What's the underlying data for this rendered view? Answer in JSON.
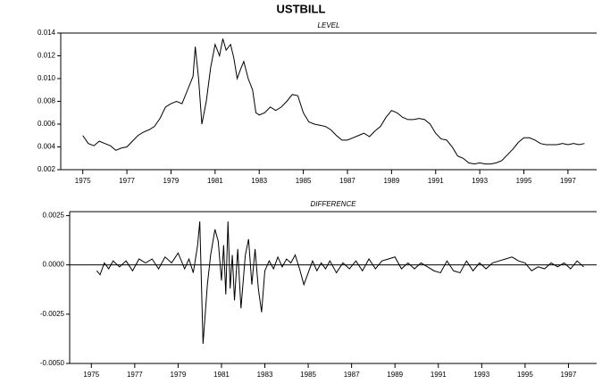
{
  "chart_data": [
    {
      "type": "line",
      "title": "USTBILL",
      "subtitle": "LEVEL",
      "color": "#000000",
      "x": [
        1975.0,
        1975.25,
        1975.5,
        1975.75,
        1976.0,
        1976.25,
        1976.5,
        1976.75,
        1977.0,
        1977.25,
        1977.5,
        1977.75,
        1978.0,
        1978.25,
        1978.5,
        1978.75,
        1979.0,
        1979.25,
        1979.5,
        1979.75,
        1980.0,
        1980.1,
        1980.25,
        1980.4,
        1980.6,
        1980.8,
        1981.0,
        1981.2,
        1981.35,
        1981.5,
        1981.7,
        1981.85,
        1982.0,
        1982.15,
        1982.3,
        1982.5,
        1982.7,
        1982.85,
        1983.0,
        1983.25,
        1983.5,
        1983.75,
        1984.0,
        1984.25,
        1984.5,
        1984.75,
        1985.0,
        1985.25,
        1985.5,
        1985.75,
        1986.0,
        1986.25,
        1986.5,
        1986.75,
        1987.0,
        1987.25,
        1987.5,
        1987.75,
        1988.0,
        1988.25,
        1988.5,
        1988.75,
        1989.0,
        1989.25,
        1989.5,
        1989.75,
        1990.0,
        1990.25,
        1990.5,
        1990.75,
        1991.0,
        1991.25,
        1991.5,
        1991.75,
        1992.0,
        1992.25,
        1992.5,
        1992.75,
        1993.0,
        1993.25,
        1993.5,
        1993.75,
        1994.0,
        1994.25,
        1994.5,
        1994.75,
        1995.0,
        1995.25,
        1995.5,
        1995.75,
        1996.0,
        1996.25,
        1996.5,
        1996.75,
        1997.0,
        1997.25,
        1997.5,
        1997.75
      ],
      "values": [
        0.005,
        0.0043,
        0.0041,
        0.0045,
        0.0043,
        0.0041,
        0.0037,
        0.0039,
        0.004,
        0.0045,
        0.005,
        0.0053,
        0.0055,
        0.0058,
        0.0065,
        0.0075,
        0.0078,
        0.008,
        0.0078,
        0.009,
        0.0102,
        0.0128,
        0.01,
        0.006,
        0.008,
        0.011,
        0.013,
        0.012,
        0.0135,
        0.0125,
        0.013,
        0.0118,
        0.01,
        0.0108,
        0.0115,
        0.01,
        0.009,
        0.007,
        0.0068,
        0.007,
        0.0075,
        0.0072,
        0.0075,
        0.008,
        0.0086,
        0.0085,
        0.007,
        0.0062,
        0.006,
        0.0059,
        0.0058,
        0.0055,
        0.005,
        0.0046,
        0.0046,
        0.0048,
        0.005,
        0.0052,
        0.0049,
        0.0054,
        0.0058,
        0.0066,
        0.0072,
        0.007,
        0.0066,
        0.0064,
        0.0064,
        0.0065,
        0.0064,
        0.006,
        0.0052,
        0.0047,
        0.0046,
        0.004,
        0.0032,
        0.003,
        0.0026,
        0.0025,
        0.0026,
        0.0025,
        0.0025,
        0.0026,
        0.0028,
        0.0033,
        0.0038,
        0.0044,
        0.0048,
        0.0048,
        0.0046,
        0.0043,
        0.0042,
        0.0042,
        0.0042,
        0.0043,
        0.0042,
        0.0043,
        0.0042,
        0.0043
      ],
      "xlim": [
        1974,
        1998.3
      ],
      "xticks": [
        1975,
        1977,
        1979,
        1981,
        1983,
        1985,
        1987,
        1989,
        1991,
        1993,
        1995,
        1997
      ],
      "ylim": [
        0.002,
        0.014
      ],
      "yticks": [
        0.002,
        0.004,
        0.006,
        0.008,
        {
          "value": 0.01,
          "label": "0.010"
        },
        0.012,
        0.014
      ]
    },
    {
      "type": "line",
      "subtitle": "DIFFERENCE",
      "color": "#000000",
      "zero_line": true,
      "x": [
        1975.25,
        1975.4,
        1975.6,
        1975.8,
        1976.0,
        1976.3,
        1976.6,
        1976.9,
        1977.2,
        1977.5,
        1977.8,
        1978.1,
        1978.4,
        1978.7,
        1979.0,
        1979.3,
        1979.5,
        1979.7,
        1979.9,
        1980.0,
        1980.15,
        1980.35,
        1980.5,
        1980.7,
        1980.85,
        1981.0,
        1981.1,
        1981.2,
        1981.3,
        1981.4,
        1981.5,
        1981.6,
        1981.75,
        1981.9,
        1982.1,
        1982.25,
        1982.4,
        1982.55,
        1982.7,
        1982.85,
        1983.0,
        1983.2,
        1983.4,
        1983.6,
        1983.8,
        1984.0,
        1984.2,
        1984.4,
        1984.6,
        1984.8,
        1985.0,
        1985.2,
        1985.4,
        1985.6,
        1985.8,
        1986.0,
        1986.3,
        1986.6,
        1986.9,
        1987.2,
        1987.5,
        1987.8,
        1988.1,
        1988.4,
        1988.7,
        1989.0,
        1989.3,
        1989.6,
        1989.9,
        1990.2,
        1990.5,
        1990.8,
        1991.1,
        1991.4,
        1991.7,
        1992.0,
        1992.3,
        1992.6,
        1992.9,
        1993.2,
        1993.5,
        1993.8,
        1994.1,
        1994.4,
        1994.7,
        1995.0,
        1995.3,
        1995.6,
        1995.9,
        1996.2,
        1996.5,
        1996.8,
        1997.1,
        1997.4,
        1997.7
      ],
      "values": [
        -0.0003,
        -0.0005,
        0.0001,
        -0.0002,
        0.0002,
        -0.0001,
        0.0002,
        -0.0003,
        0.0003,
        0.0001,
        0.0003,
        -0.0002,
        0.0004,
        0.0001,
        0.0006,
        -0.0002,
        0.0003,
        -0.0004,
        0.001,
        0.0022,
        -0.004,
        -0.001,
        0.0005,
        0.0018,
        0.0012,
        -0.0008,
        0.001,
        -0.0015,
        0.0022,
        -0.0012,
        0.0005,
        -0.0018,
        0.0008,
        -0.0022,
        0.0005,
        0.0013,
        -0.001,
        0.0008,
        -0.0012,
        -0.0024,
        -0.0003,
        0.0002,
        -0.0002,
        0.0004,
        -0.0001,
        0.0003,
        0.0001,
        0.0005,
        -0.0002,
        -0.001,
        -0.0004,
        0.0002,
        -0.0003,
        0.0001,
        -0.0002,
        0.0002,
        -0.0004,
        0.0001,
        -0.0002,
        0.0002,
        -0.0003,
        0.0003,
        -0.0002,
        0.0002,
        0.0003,
        0.0004,
        -0.0002,
        0.0001,
        -0.0002,
        0.0001,
        -0.0001,
        -0.0003,
        -0.0004,
        0.0002,
        -0.0003,
        -0.0004,
        0.0002,
        -0.0003,
        0.0001,
        -0.0002,
        0.0001,
        0.0002,
        0.0003,
        0.0004,
        0.0002,
        0.0001,
        -0.0003,
        -0.0001,
        -0.0002,
        0.0001,
        -0.0001,
        0.0001,
        -0.0002,
        0.0002,
        -0.0001
      ],
      "xlim": [
        1974,
        1998.3
      ],
      "xticks": [
        1975,
        1977,
        1979,
        1981,
        1983,
        1985,
        1987,
        1989,
        1991,
        1993,
        1995,
        1997
      ],
      "ylim": [
        -0.005,
        0.0027
      ],
      "yticks": [
        {
          "value": -0.005,
          "label": "-0.0050"
        },
        -0.0025,
        {
          "value": 0,
          "label": "0.0000"
        },
        0.0025
      ]
    }
  ]
}
